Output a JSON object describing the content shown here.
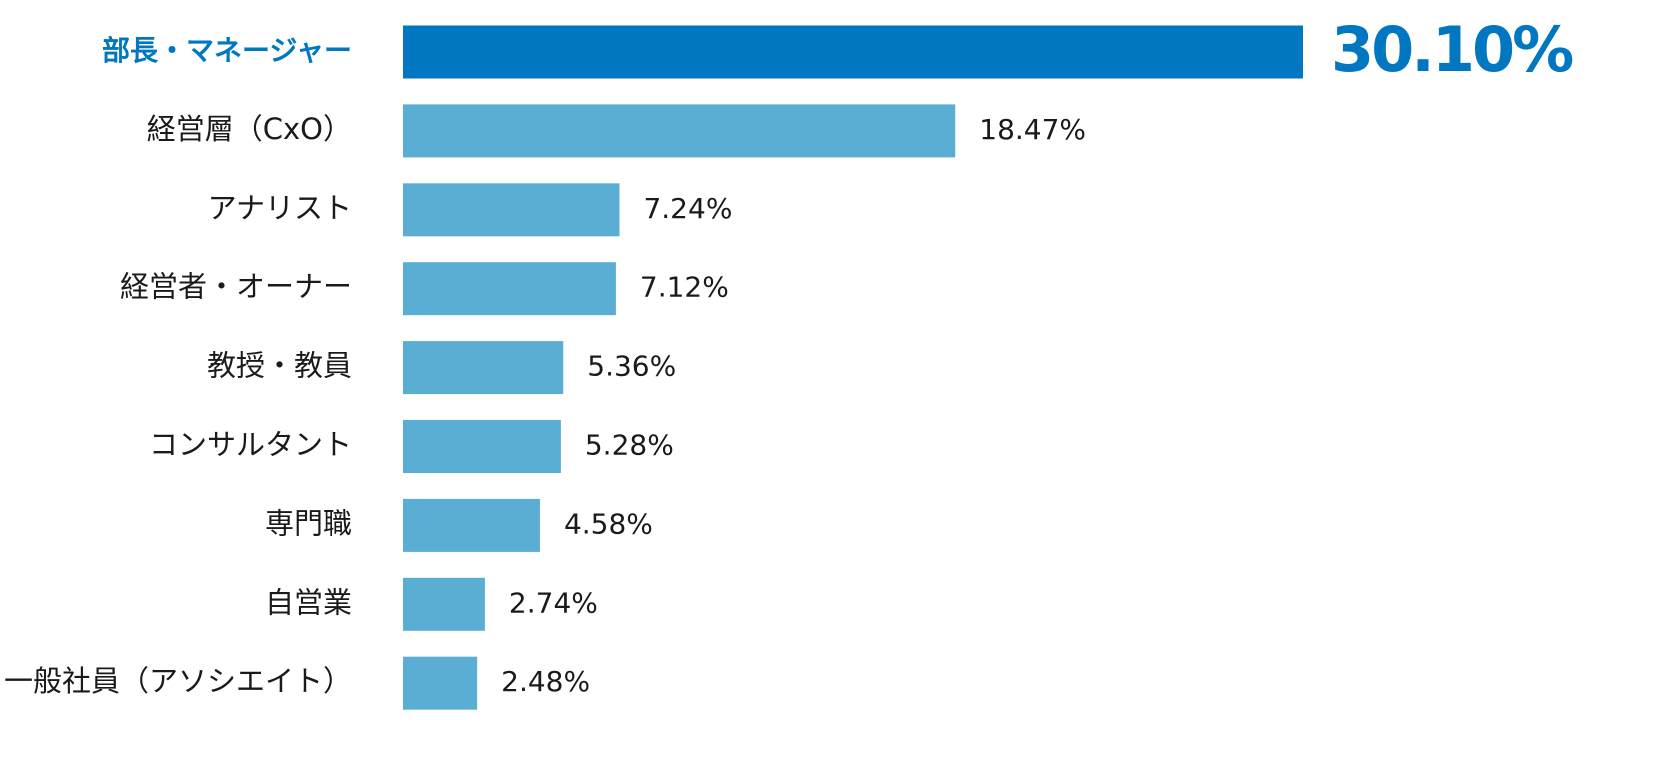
{
  "chart_data": {
    "type": "bar",
    "orientation": "horizontal",
    "categories": [
      "部長・マネージャー",
      "経営層（CxO）",
      "アナリスト",
      "経営者・オーナー",
      "教授・教員",
      "コンサルタント",
      "専門職",
      "自営業",
      "一般社員（アソシエイト）"
    ],
    "values": [
      30.1,
      18.47,
      7.24,
      7.12,
      5.36,
      5.28,
      4.58,
      2.74,
      2.48
    ],
    "value_labels": [
      "30.10%",
      "18.47%",
      "7.24%",
      "7.12%",
      "5.36%",
      "5.28%",
      "4.58%",
      "2.74%",
      "2.48%"
    ],
    "color": "#5aaed3",
    "highlight_color": "#0077c0",
    "highlight_index": 0
  }
}
